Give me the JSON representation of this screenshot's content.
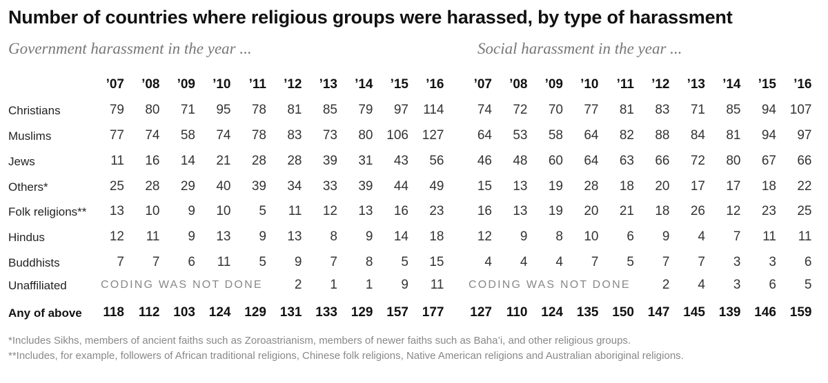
{
  "title": "Number of countries where religious groups were harassed, by type of harassment",
  "subtitles": {
    "government": "Government harassment in the year ...",
    "social": "Social harassment in the year ..."
  },
  "years": [
    "’07",
    "’08",
    "’09",
    "’10",
    "’11",
    "’12",
    "’13",
    "’14",
    "’15",
    "’16"
  ],
  "coding_note": "CODING WAS NOT DONE",
  "chart_data": {
    "type": "table",
    "title": "Number of countries where religious groups were harassed, by type of harassment",
    "panels": [
      {
        "name": "Government harassment in the year ...",
        "columns": [
          "’07",
          "’08",
          "’09",
          "’10",
          "’11",
          "’12",
          "’13",
          "’14",
          "’15",
          "’16"
        ],
        "rows": [
          {
            "label": "Christians",
            "values": [
              79,
              80,
              71,
              95,
              78,
              81,
              85,
              79,
              97,
              114
            ]
          },
          {
            "label": "Muslims",
            "values": [
              77,
              74,
              58,
              74,
              78,
              83,
              73,
              80,
              106,
              127
            ]
          },
          {
            "label": "Jews",
            "values": [
              11,
              16,
              14,
              21,
              28,
              28,
              39,
              31,
              43,
              56
            ]
          },
          {
            "label": "Others*",
            "values": [
              25,
              28,
              29,
              40,
              39,
              34,
              33,
              39,
              44,
              49
            ]
          },
          {
            "label": "Folk religions**",
            "values": [
              13,
              10,
              9,
              10,
              5,
              11,
              12,
              13,
              16,
              23
            ]
          },
          {
            "label": "Hindus",
            "values": [
              12,
              11,
              9,
              13,
              9,
              13,
              8,
              9,
              14,
              18
            ]
          },
          {
            "label": "Buddhists",
            "values": [
              7,
              7,
              6,
              11,
              5,
              9,
              7,
              8,
              5,
              15
            ]
          },
          {
            "label": "Unaffiliated",
            "values": [
              null,
              null,
              null,
              null,
              null,
              2,
              1,
              1,
              9,
              11
            ]
          },
          {
            "label": "Any of above",
            "values": [
              118,
              112,
              103,
              124,
              129,
              131,
              133,
              129,
              157,
              177
            ]
          }
        ]
      },
      {
        "name": "Social harassment in the year ...",
        "columns": [
          "’07",
          "’08",
          "’09",
          "’10",
          "’11",
          "’12",
          "’13",
          "’14",
          "’15",
          "’16"
        ],
        "rows": [
          {
            "label": "Christians",
            "values": [
              74,
              72,
              70,
              77,
              81,
              83,
              71,
              85,
              94,
              107
            ]
          },
          {
            "label": "Muslims",
            "values": [
              64,
              53,
              58,
              64,
              82,
              88,
              84,
              81,
              94,
              97
            ]
          },
          {
            "label": "Jews",
            "values": [
              46,
              48,
              60,
              64,
              63,
              66,
              72,
              80,
              67,
              66
            ]
          },
          {
            "label": "Others*",
            "values": [
              15,
              13,
              19,
              28,
              18,
              20,
              17,
              17,
              18,
              22
            ]
          },
          {
            "label": "Folk religions**",
            "values": [
              16,
              13,
              19,
              20,
              21,
              18,
              26,
              12,
              23,
              25
            ]
          },
          {
            "label": "Hindus",
            "values": [
              12,
              9,
              8,
              10,
              6,
              9,
              4,
              7,
              11,
              11
            ]
          },
          {
            "label": "Buddhists",
            "values": [
              4,
              4,
              4,
              7,
              5,
              7,
              7,
              3,
              3,
              6
            ]
          },
          {
            "label": "Unaffiliated",
            "values": [
              null,
              null,
              null,
              null,
              null,
              2,
              4,
              3,
              6,
              5
            ]
          },
          {
            "label": "Any of above",
            "values": [
              127,
              110,
              124,
              135,
              150,
              147,
              145,
              139,
              146,
              159
            ]
          }
        ]
      }
    ]
  },
  "notes": [
    "*Includes Sikhs, members of ancient faiths such as Zoroastrianism, members of newer faiths such as Baha’i, and other religious groups.",
    "**Includes, for example, followers of African traditional religions, Chinese folk religions, Native American religions and Australian aboriginal religions."
  ]
}
